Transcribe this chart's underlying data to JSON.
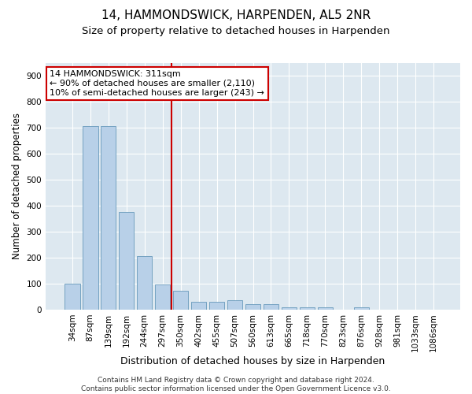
{
  "title": "14, HAMMONDSWICK, HARPENDEN, AL5 2NR",
  "subtitle": "Size of property relative to detached houses in Harpenden",
  "xlabel": "Distribution of detached houses by size in Harpenden",
  "ylabel": "Number of detached properties",
  "categories": [
    "34sqm",
    "87sqm",
    "139sqm",
    "192sqm",
    "244sqm",
    "297sqm",
    "350sqm",
    "402sqm",
    "455sqm",
    "507sqm",
    "560sqm",
    "613sqm",
    "665sqm",
    "718sqm",
    "770sqm",
    "823sqm",
    "876sqm",
    "928sqm",
    "981sqm",
    "1033sqm",
    "1086sqm"
  ],
  "values": [
    100,
    707,
    707,
    375,
    207,
    98,
    72,
    30,
    30,
    35,
    20,
    20,
    10,
    10,
    10,
    0,
    10,
    0,
    0,
    0,
    0
  ],
  "bar_color": "#b8d0e8",
  "bar_edgecolor": "#6699bb",
  "vline_x": 5.5,
  "vline_color": "#cc0000",
  "annotation_text": "14 HAMMONDSWICK: 311sqm\n← 90% of detached houses are smaller (2,110)\n10% of semi-detached houses are larger (243) →",
  "annotation_box_facecolor": "#ffffff",
  "annotation_box_edgecolor": "#cc0000",
  "ylim": [
    0,
    950
  ],
  "yticks": [
    0,
    100,
    200,
    300,
    400,
    500,
    600,
    700,
    800,
    900
  ],
  "background_color": "#dde8f0",
  "grid_color": "#ffffff",
  "footer": "Contains HM Land Registry data © Crown copyright and database right 2024.\nContains public sector information licensed under the Open Government Licence v3.0.",
  "title_fontsize": 11,
  "subtitle_fontsize": 9.5,
  "xlabel_fontsize": 9,
  "ylabel_fontsize": 8.5,
  "tick_fontsize": 7.5,
  "annotation_fontsize": 8,
  "footer_fontsize": 6.5
}
